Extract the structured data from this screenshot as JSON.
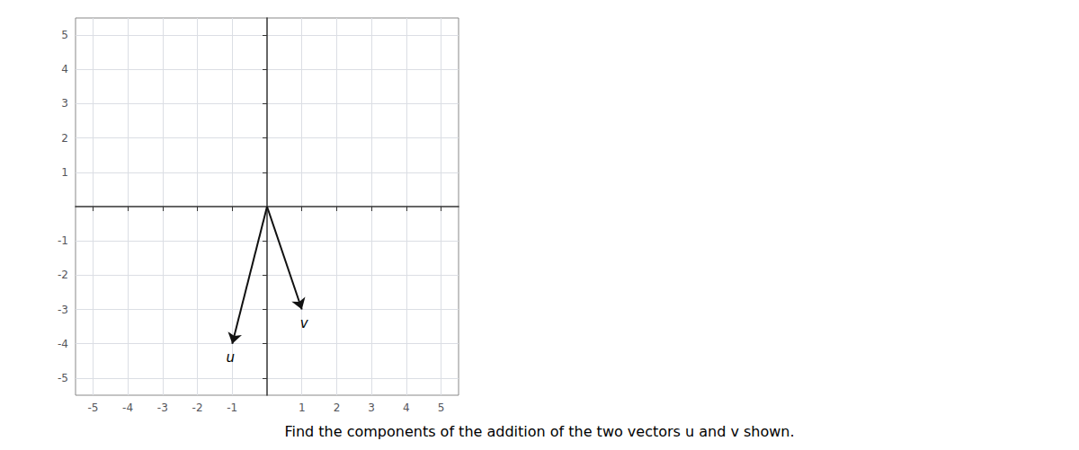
{
  "chart_data": {
    "type": "vector",
    "title": "Find the components of the addition of the two vectors u and v shown.",
    "xlim": [
      -5.5,
      5.5
    ],
    "ylim": [
      -5.5,
      5.5
    ],
    "xticks": [
      -5,
      -4,
      -3,
      -2,
      -1,
      1,
      2,
      3,
      4,
      5
    ],
    "yticks": [
      -5,
      -4,
      -3,
      -2,
      -1,
      1,
      2,
      3,
      4,
      5
    ],
    "grid": true,
    "series": [
      {
        "name": "u",
        "color": "#111111",
        "start": [
          0,
          0
        ],
        "end": [
          -1,
          -4
        ]
      },
      {
        "name": "v",
        "color": "#111111",
        "start": [
          0,
          0
        ],
        "end": [
          1,
          -3
        ]
      }
    ]
  }
}
